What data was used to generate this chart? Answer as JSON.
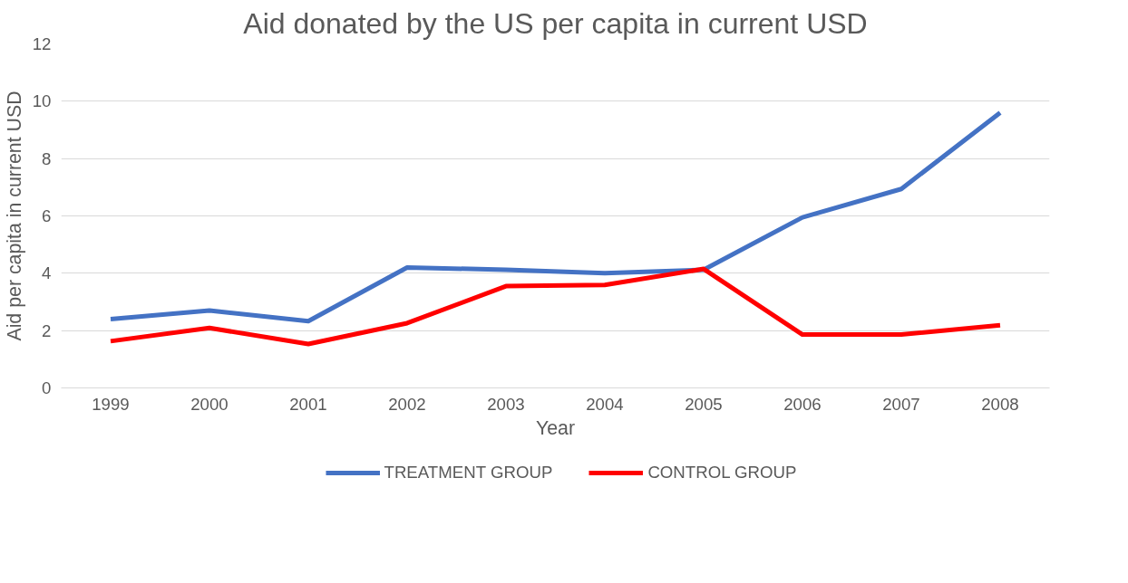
{
  "chart_data": {
    "type": "line",
    "title": "Aid donated by the US per capita in current USD",
    "xlabel": "Year",
    "ylabel": "Aid per capita in current USD",
    "categories": [
      "1999",
      "2000",
      "2001",
      "2002",
      "2003",
      "2004",
      "2005",
      "2006",
      "2007",
      "2008"
    ],
    "series": [
      {
        "name": "TREATMENT GROUP",
        "color": "#4472c4",
        "values": [
          2.4,
          2.7,
          2.33,
          4.2,
          4.12,
          4.0,
          4.12,
          5.95,
          6.94,
          9.6
        ]
      },
      {
        "name": "CONTROL GROUP",
        "color": "#ff0000",
        "values": [
          1.63,
          2.09,
          1.53,
          2.26,
          3.55,
          3.59,
          4.15,
          1.86,
          1.86,
          2.19
        ]
      }
    ],
    "ylim": [
      0,
      12
    ],
    "yticks": [
      0,
      2,
      4,
      6,
      8,
      10,
      12
    ],
    "grid": "y",
    "legend": "bottom",
    "marker": "none",
    "line_style": "solid"
  }
}
